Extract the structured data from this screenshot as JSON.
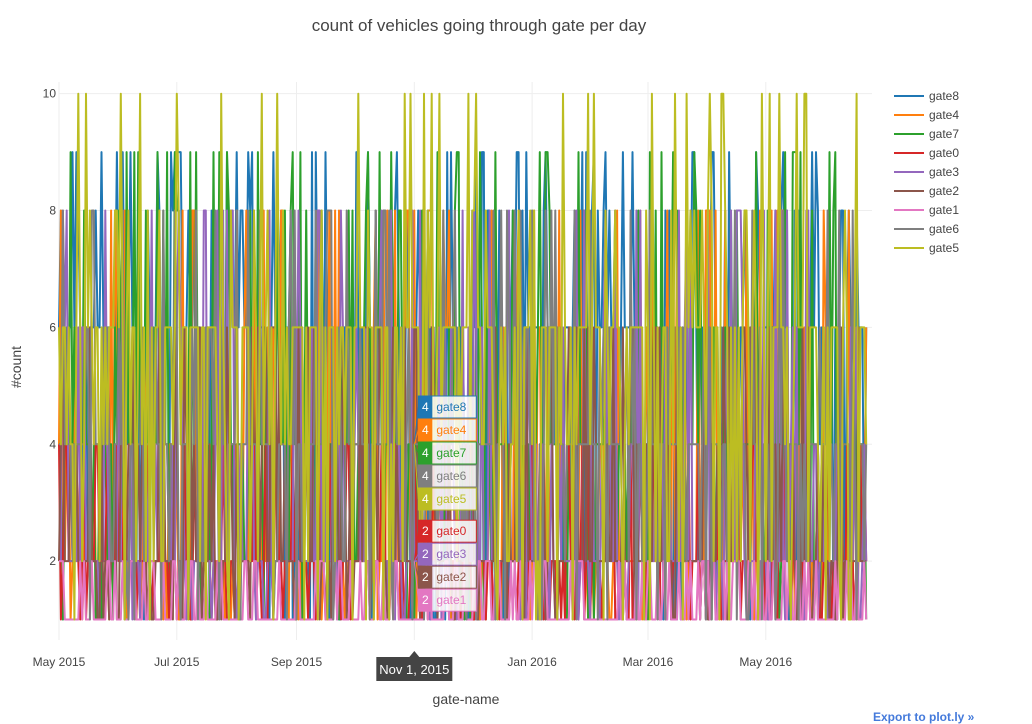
{
  "chart_data": {
    "type": "line",
    "title": "count of vehicles going through gate per day",
    "xlabel": "gate-name",
    "ylabel": "#count",
    "x_range": [
      "2015-05-01",
      "2016-06-25"
    ],
    "ylim": [
      0.65,
      10.2
    ],
    "yticks": [
      2,
      4,
      6,
      8,
      10
    ],
    "xticks": [
      {
        "date": "2015-05-01",
        "label": "May 2015"
      },
      {
        "date": "2015-07-01",
        "label": "Jul 2015"
      },
      {
        "date": "2015-09-01",
        "label": "Sep 2015"
      },
      {
        "date": "2015-11-01",
        "label": "Nov 2015"
      },
      {
        "date": "2016-01-01",
        "label": "Jan 2016"
      },
      {
        "date": "2016-03-01",
        "label": "Mar 2016"
      },
      {
        "date": "2016-05-01",
        "label": "May 2016"
      }
    ],
    "grid": true,
    "legend_position": "right",
    "series": [
      {
        "name": "gate8",
        "color": "#1f77b4",
        "values_set": [
          1,
          2,
          4,
          6,
          8,
          9
        ],
        "dominant": 6
      },
      {
        "name": "gate4",
        "color": "#ff7f0e",
        "values_set": [
          1,
          2,
          4,
          6,
          8
        ],
        "dominant": 2
      },
      {
        "name": "gate7",
        "color": "#2ca02c",
        "values_set": [
          1,
          2,
          4,
          6,
          8,
          9
        ],
        "dominant": 4
      },
      {
        "name": "gate0",
        "color": "#d62728",
        "values_set": [
          1,
          2,
          4
        ],
        "dominant": 2
      },
      {
        "name": "gate3",
        "color": "#9467bd",
        "values_set": [
          1,
          2,
          4,
          6,
          8
        ],
        "dominant": 2
      },
      {
        "name": "gate2",
        "color": "#8c564b",
        "values_set": [
          1,
          2,
          4,
          6
        ],
        "dominant": 2
      },
      {
        "name": "gate1",
        "color": "#e377c2",
        "values_set": [
          1,
          2
        ],
        "dominant": 1
      },
      {
        "name": "gate6",
        "color": "#7f7f7f",
        "values_set": [
          1,
          2,
          4,
          6,
          8
        ],
        "dominant": 4
      },
      {
        "name": "gate5",
        "color": "#bcbd22",
        "values_set": [
          1,
          2,
          4,
          6,
          8,
          10
        ],
        "dominant": 6
      }
    ],
    "hover": {
      "x_date": "2015-11-01",
      "x_label": "Nov 1, 2015",
      "points": [
        {
          "series": "gate8",
          "value": 4
        },
        {
          "series": "gate4",
          "value": 4
        },
        {
          "series": "gate7",
          "value": 4
        },
        {
          "series": "gate6",
          "value": 4
        },
        {
          "series": "gate5",
          "value": 4
        },
        {
          "series": "gate0",
          "value": 2
        },
        {
          "series": "gate3",
          "value": 2
        },
        {
          "series": "gate2",
          "value": 2
        },
        {
          "series": "gate1",
          "value": 2
        }
      ]
    }
  },
  "export_link": "Export to plot.ly »"
}
